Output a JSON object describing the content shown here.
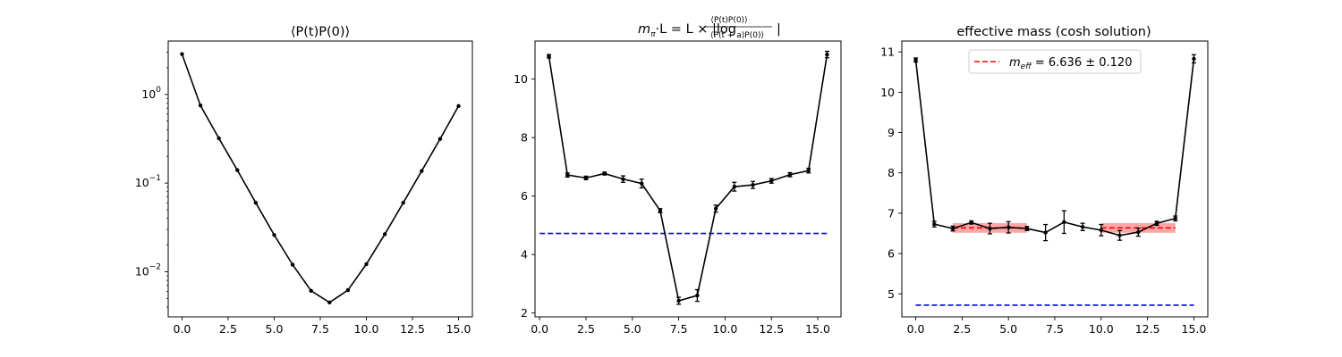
{
  "chart_data": [
    {
      "type": "line",
      "title": "⟨P(t)P(0)⟩",
      "xlabel": "",
      "ylabel": "",
      "yscale": "log",
      "xlim": [
        -0.75,
        15.75
      ],
      "ylim": [
        0.0031,
        4.0
      ],
      "xticks": [
        0.0,
        2.5,
        5.0,
        7.5,
        10.0,
        12.5,
        15.0
      ],
      "xtick_labels": [
        "0.0",
        "2.5",
        "5.0",
        "7.5",
        "10.0",
        "12.5",
        "15.0"
      ],
      "yticks": [
        0.01,
        0.1,
        1
      ],
      "ytick_exponents": [
        "−2",
        "−1",
        "0"
      ],
      "grid": false,
      "series": [
        {
          "color": "#000000",
          "x": [
            0,
            1,
            2,
            3,
            4,
            5,
            6,
            7,
            8,
            9,
            10,
            11,
            12,
            13,
            14,
            15
          ],
          "y": [
            2.85,
            0.75,
            0.32,
            0.14,
            0.06,
            0.026,
            0.012,
            0.0061,
            0.0045,
            0.0062,
            0.0122,
            0.0265,
            0.06,
            0.137,
            0.315,
            0.74
          ]
        }
      ]
    },
    {
      "type": "line",
      "title_parts": {
        "prefix": "m",
        "prefix_sub": "π",
        "middle": "·L = L × |log",
        "numerator": "⟨P(t)P(0)⟩",
        "denominator": "⟨P(t + a)P(0)⟩",
        "suffix": "|"
      },
      "xlabel": "",
      "ylabel": "",
      "xlim": [
        -0.25,
        16.25
      ],
      "ylim": [
        1.87,
        11.3
      ],
      "xticks": [
        0.0,
        2.5,
        5.0,
        7.5,
        10.0,
        12.5,
        15.0
      ],
      "xtick_labels": [
        "0.0",
        "2.5",
        "5.0",
        "7.5",
        "10.0",
        "12.5",
        "15.0"
      ],
      "yticks": [
        2,
        4,
        6,
        8,
        10
      ],
      "ytick_labels": [
        "2",
        "4",
        "6",
        "8",
        "10"
      ],
      "grid": false,
      "series": [
        {
          "color": "#000000",
          "x": [
            0.5,
            1.5,
            2.5,
            3.5,
            4.5,
            5.5,
            6.5,
            7.5,
            8.5,
            9.5,
            10.5,
            11.5,
            12.5,
            13.5,
            14.5,
            15.5
          ],
          "y": [
            10.78,
            6.72,
            6.62,
            6.77,
            6.58,
            6.43,
            5.5,
            2.42,
            2.6,
            5.57,
            6.32,
            6.38,
            6.52,
            6.73,
            6.87,
            10.84
          ],
          "yerr": [
            0.06,
            0.07,
            0.06,
            0.05,
            0.11,
            0.15,
            0.07,
            0.12,
            0.2,
            0.12,
            0.15,
            0.12,
            0.08,
            0.07,
            0.08,
            0.11
          ]
        }
      ],
      "hlines": [
        {
          "y": 4.72,
          "color": "#0000ff",
          "style": "dashed"
        }
      ]
    },
    {
      "type": "line",
      "title": "effective mass (cosh solution)",
      "xlabel": "",
      "ylabel": "",
      "xlim": [
        -0.75,
        15.75
      ],
      "ylim": [
        4.43,
        11.27
      ],
      "xticks": [
        0.0,
        2.5,
        5.0,
        7.5,
        10.0,
        12.5,
        15.0
      ],
      "xtick_labels": [
        "0.0",
        "2.5",
        "5.0",
        "7.5",
        "10.0",
        "12.5",
        "15.0"
      ],
      "yticks": [
        5,
        6,
        7,
        8,
        9,
        10,
        11
      ],
      "ytick_labels": [
        "5",
        "6",
        "7",
        "8",
        "9",
        "10",
        "11"
      ],
      "grid": false,
      "legend": {
        "position": "upper center",
        "entries": [
          {
            "label_math": "m",
            "label_sub": "eff",
            "label_rest": " = 6.636 ± 0.120",
            "color": "#ff0000",
            "style": "dashed"
          }
        ]
      },
      "series": [
        {
          "color": "#000000",
          "x": [
            0,
            1,
            2,
            3,
            4,
            5,
            6,
            7,
            8,
            9,
            10,
            11,
            12,
            13,
            14,
            15
          ],
          "y": [
            10.8,
            6.73,
            6.62,
            6.77,
            6.62,
            6.65,
            6.62,
            6.52,
            6.78,
            6.66,
            6.58,
            6.45,
            6.53,
            6.75,
            6.87,
            10.83
          ],
          "yerr": [
            0.05,
            0.07,
            0.06,
            0.04,
            0.13,
            0.14,
            0.05,
            0.2,
            0.28,
            0.09,
            0.14,
            0.12,
            0.1,
            0.05,
            0.06,
            0.1
          ]
        }
      ],
      "hlines": [
        {
          "y": 4.72,
          "xrange": [
            0,
            15
          ],
          "color": "#0000ff",
          "style": "dashed"
        }
      ],
      "fit_bands": [
        {
          "xrange": [
            2,
            6
          ],
          "y": 6.636,
          "err": 0.12,
          "color": "#ff0000"
        },
        {
          "xrange": [
            10,
            14
          ],
          "y": 6.636,
          "err": 0.12,
          "color": "#ff0000"
        }
      ]
    }
  ]
}
